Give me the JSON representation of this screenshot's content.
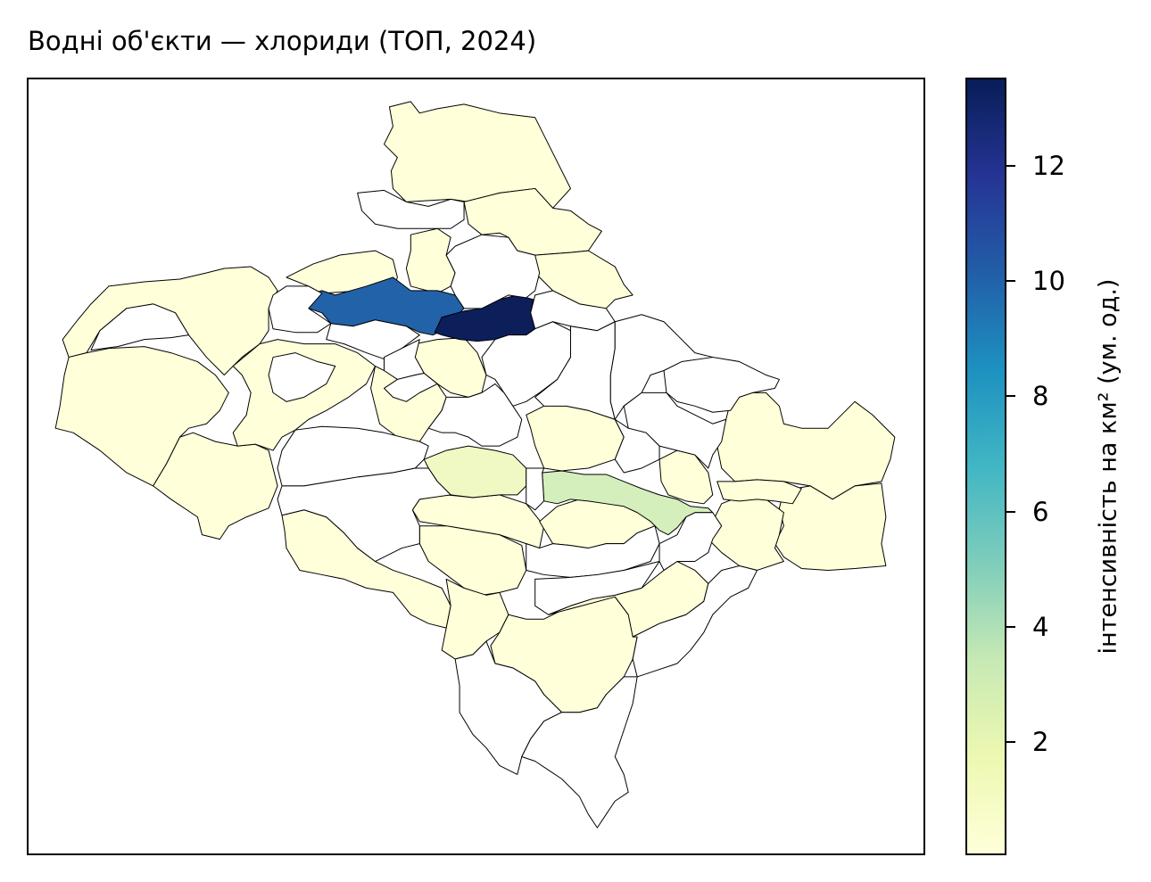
{
  "title": "Водні об'єкти — хлориди (ТОП, 2024)",
  "colorbar": {
    "label": "інтенсивність на км² (ум. од.)",
    "ticks": [
      {
        "value": 2,
        "label": "2"
      },
      {
        "value": 4,
        "label": "4"
      },
      {
        "value": 6,
        "label": "6"
      },
      {
        "value": 8,
        "label": "8"
      },
      {
        "value": 10,
        "label": "10"
      },
      {
        "value": 12,
        "label": "12"
      }
    ],
    "range": [
      0,
      13.5
    ],
    "colormap": "YlGnBu"
  },
  "colors": {
    "low": "#ffffd9",
    "very_light": "#f0f9c4",
    "light_green": "#d4eebc",
    "mid_blue": "#2262a8",
    "dark_navy": "#0c1f5b",
    "no_data": "#ffffff",
    "border": "#000000"
  },
  "highlighted_regions": [
    {
      "id": "region-a",
      "value": 13.4
    },
    {
      "id": "region-b",
      "value": 10.1
    },
    {
      "id": "region-c",
      "value": 2.6
    },
    {
      "id": "region-d",
      "value": 1.2
    }
  ]
}
